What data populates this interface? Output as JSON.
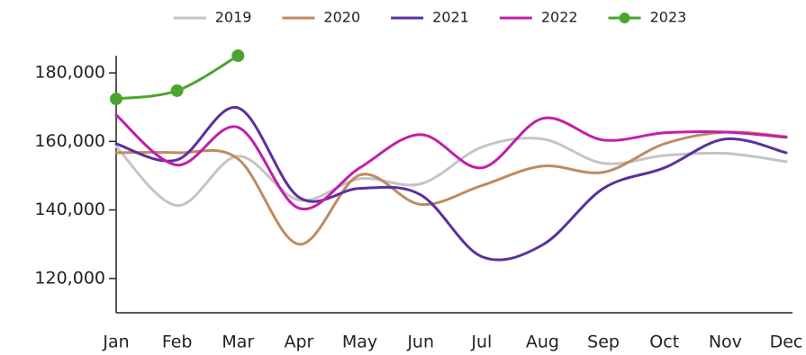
{
  "chart_data": {
    "type": "line",
    "categories": [
      "Jan",
      "Feb",
      "Mar",
      "Apr",
      "May",
      "Jun",
      "Jul",
      "Aug",
      "Sep",
      "Oct",
      "Nov",
      "Dec"
    ],
    "ylim": [
      110000,
      185000
    ],
    "yticks": [
      {
        "value": 120000,
        "label": "120,000"
      },
      {
        "value": 140000,
        "label": "140,000"
      },
      {
        "value": 160000,
        "label": "160,000"
      },
      {
        "value": 180000,
        "label": "180,000"
      }
    ],
    "grid": false,
    "legend": "top",
    "series": [
      {
        "name": "2019",
        "color": "#c4c4c4",
        "markers": false,
        "values": [
          158500,
          141300,
          155700,
          142900,
          149100,
          147600,
          158300,
          160700,
          153600,
          155900,
          156500,
          154100
        ]
      },
      {
        "name": "2020",
        "color": "#c08a60",
        "markers": false,
        "values": [
          156700,
          156700,
          154900,
          130000,
          150200,
          141600,
          147100,
          152800,
          151000,
          159300,
          162700,
          161400
        ]
      },
      {
        "name": "2021",
        "color": "#5b2fa0",
        "markers": false,
        "values": [
          159300,
          154600,
          169800,
          143700,
          146300,
          144400,
          126400,
          129800,
          146300,
          152300,
          160700,
          156700
        ]
      },
      {
        "name": "2022",
        "color": "#c21fa8",
        "markers": false,
        "values": [
          167700,
          153100,
          164100,
          140500,
          152300,
          162000,
          152300,
          166700,
          160400,
          162500,
          162700,
          161200
        ]
      },
      {
        "name": "2023",
        "color": "#4aa52e",
        "markers": true,
        "values": [
          172400,
          174800,
          185000,
          null,
          null,
          null,
          null,
          null,
          null,
          null,
          null,
          null
        ]
      }
    ]
  }
}
